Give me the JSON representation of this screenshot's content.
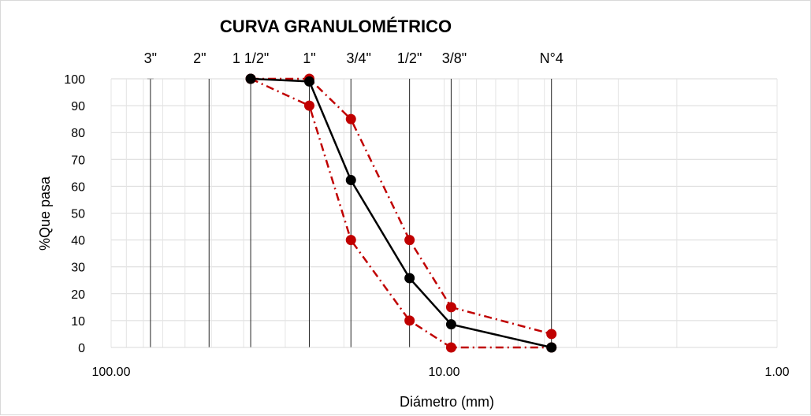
{
  "chart_data": {
    "type": "line",
    "title": "CURVA GRANULOMÉTRICO",
    "xlabel": "Diámetro (mm)",
    "ylabel": "%Que pasa",
    "x_scale": "log",
    "x_reversed": true,
    "xlim": [
      100,
      1
    ],
    "ylim": [
      0,
      100
    ],
    "y_ticks": [
      0,
      10,
      20,
      30,
      40,
      50,
      60,
      70,
      80,
      90,
      100
    ],
    "x_ticks": [
      {
        "value": 100,
        "label": "100.00"
      },
      {
        "value": 10,
        "label": "10.00"
      },
      {
        "value": 1,
        "label": "1.00"
      }
    ],
    "grid": true,
    "sieves": [
      {
        "label": "3\"",
        "x": 76.2
      },
      {
        "label": "2\"",
        "x": 50.8
      },
      {
        "label": "1 1/2\"",
        "x": 38.1
      },
      {
        "label": "1\"",
        "x": 25.4
      },
      {
        "label": "3/4\"",
        "x": 19.05
      },
      {
        "label": "1/2\"",
        "x": 12.7
      },
      {
        "label": "3/8\"",
        "x": 9.525
      },
      {
        "label": "N°4",
        "x": 4.76
      }
    ],
    "series": [
      {
        "style": "dashdot",
        "color": "#c00000",
        "x": [
          38.1,
          25.4,
          19.05,
          12.7,
          9.525,
          4.76
        ],
        "values": [
          100,
          90,
          40,
          10,
          0,
          0
        ]
      },
      {
        "style": "dashdot",
        "color": "#c00000",
        "x": [
          38.1,
          25.4,
          19.05,
          12.7,
          9.525,
          4.76
        ],
        "values": [
          100,
          100,
          85,
          40,
          15,
          5
        ]
      },
      {
        "style": "solid",
        "color": "#000000",
        "x": [
          38.1,
          25.4,
          19.05,
          12.7,
          9.525,
          4.76
        ],
        "values": [
          100,
          99,
          62.3,
          25.8,
          8.6,
          0
        ]
      }
    ]
  }
}
